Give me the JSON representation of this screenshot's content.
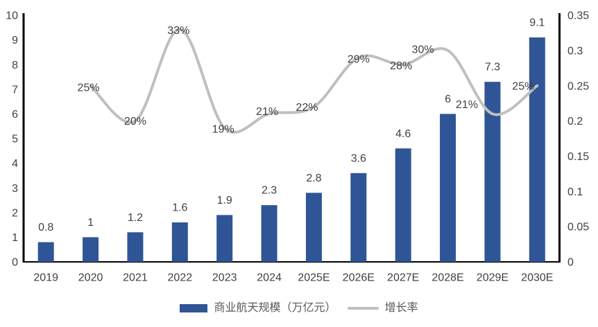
{
  "chart_data": {
    "type": "combo",
    "categories": [
      "2019",
      "2020",
      "2021",
      "2022",
      "2023",
      "2024",
      "2025E",
      "2026E",
      "2027E",
      "2028E",
      "2029E",
      "2030E"
    ],
    "series": [
      {
        "name": "商业航天规模（万亿元）",
        "type": "bar",
        "axis": "left",
        "color": "#2F5597",
        "values": [
          0.8,
          1,
          1.2,
          1.6,
          1.9,
          2.3,
          2.8,
          3.6,
          4.6,
          6,
          7.3,
          9.1
        ],
        "labels": [
          "0.8",
          "1",
          "1.2",
          "1.6",
          "1.9",
          "2.3",
          "2.8",
          "3.6",
          "4.6",
          "6",
          "7.3",
          "9.1"
        ]
      },
      {
        "name": "增长率",
        "type": "line",
        "axis": "right",
        "color": "#BFBFBF",
        "smooth": true,
        "start_category_index": 1,
        "values": [
          0.25,
          0.2,
          0.33,
          0.19,
          0.21,
          0.22,
          0.29,
          0.28,
          0.3,
          0.21,
          0.25
        ],
        "labels": [
          "25%",
          "20%",
          "33%",
          "19%",
          "21%",
          "22%",
          "29%",
          "28%",
          "30%",
          "21%",
          "25%"
        ]
      }
    ],
    "left_axis": {
      "min": 0,
      "max": 10,
      "tick_labels": [
        "0",
        "1",
        "2",
        "3",
        "4",
        "5",
        "6",
        "7",
        "8",
        "9",
        "10"
      ]
    },
    "right_axis": {
      "min": 0,
      "max": 0.35,
      "tick_labels": [
        "0",
        "0.05",
        "0.1",
        "0.15",
        "0.2",
        "0.25",
        "0.3",
        "0.35"
      ]
    },
    "grid": false,
    "legend_position": "bottom",
    "colors": {
      "axis_line": "#000000",
      "tick_text": "#404040",
      "data_label_text": "#404040",
      "legend_text": "#595959",
      "background": "#ffffff"
    }
  }
}
